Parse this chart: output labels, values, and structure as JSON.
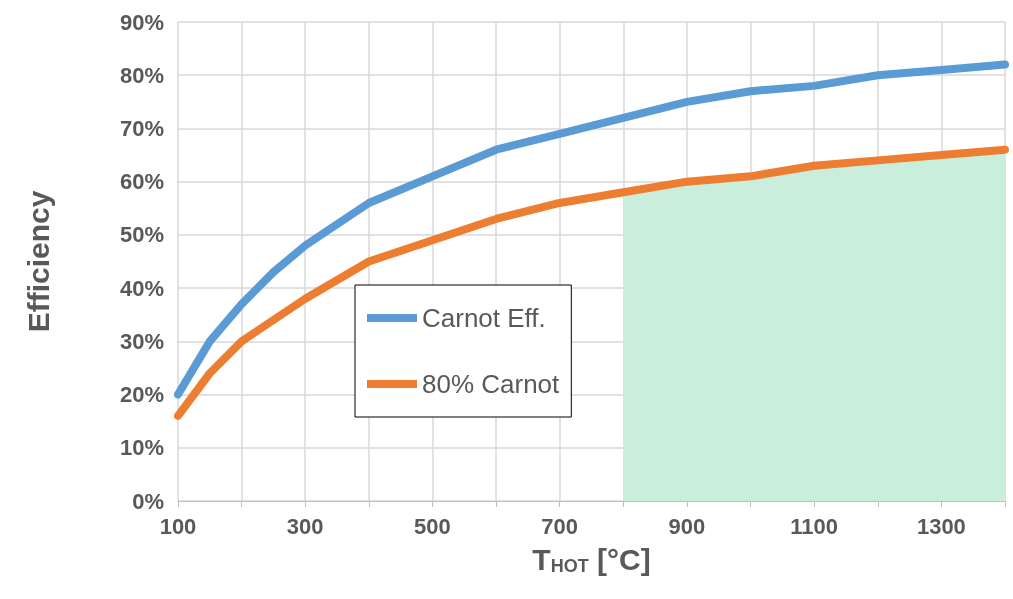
{
  "chart_data": {
    "type": "line",
    "xlabel": "T$_{HOT}$ [°C]",
    "ylabel": "Efficiency",
    "x": [
      100,
      150,
      200,
      250,
      300,
      400,
      500,
      600,
      700,
      800,
      900,
      1000,
      1100,
      1200,
      1300,
      1400
    ],
    "series": [
      {
        "type": "area",
        "color": "#c9eedb",
        "x": [
          800,
          900,
          1000,
          1100,
          1200,
          1300,
          1400
        ],
        "values": [
          58,
          60,
          61,
          63,
          64,
          65,
          66
        ]
      },
      {
        "name": "Carnot Eff.",
        "color": "#5b9bd5",
        "values": [
          20,
          30,
          37,
          43,
          48,
          56,
          61,
          66,
          69,
          72,
          75,
          77,
          78,
          80,
          81,
          82
        ]
      },
      {
        "name": "80% Carnot",
        "color": "#ed7d31",
        "values": [
          16,
          24,
          30,
          34,
          38,
          45,
          49,
          53,
          56,
          58,
          60,
          61,
          63,
          64,
          65,
          66
        ]
      }
    ],
    "xlim": [
      100,
      1400
    ],
    "xticks": [
      100,
      {
        "value": 200,
        "label": null
      },
      300,
      {
        "value": 400,
        "label": null
      },
      500,
      {
        "value": 600,
        "label": null
      },
      700,
      {
        "value": 800,
        "label": null
      },
      900,
      {
        "value": 1000,
        "label": null
      },
      1100,
      {
        "value": 1200,
        "label": null
      },
      1300,
      {
        "value": 1400,
        "label": null
      }
    ],
    "ylim": [
      0,
      90
    ],
    "yticks": [
      {
        "value": 0,
        "label": "0%"
      },
      {
        "value": 10,
        "label": "10%"
      },
      {
        "value": 20,
        "label": "20%"
      },
      {
        "value": 30,
        "label": "30%"
      },
      {
        "value": 40,
        "label": "40%"
      },
      {
        "value": 50,
        "label": "50%"
      },
      {
        "value": 60,
        "label": "60%"
      },
      {
        "value": 70,
        "label": "70%"
      },
      {
        "value": 80,
        "label": "80%"
      },
      {
        "value": 90,
        "label": "90%"
      }
    ],
    "grid": true,
    "legend": "center left",
    "line_style": "solid"
  }
}
